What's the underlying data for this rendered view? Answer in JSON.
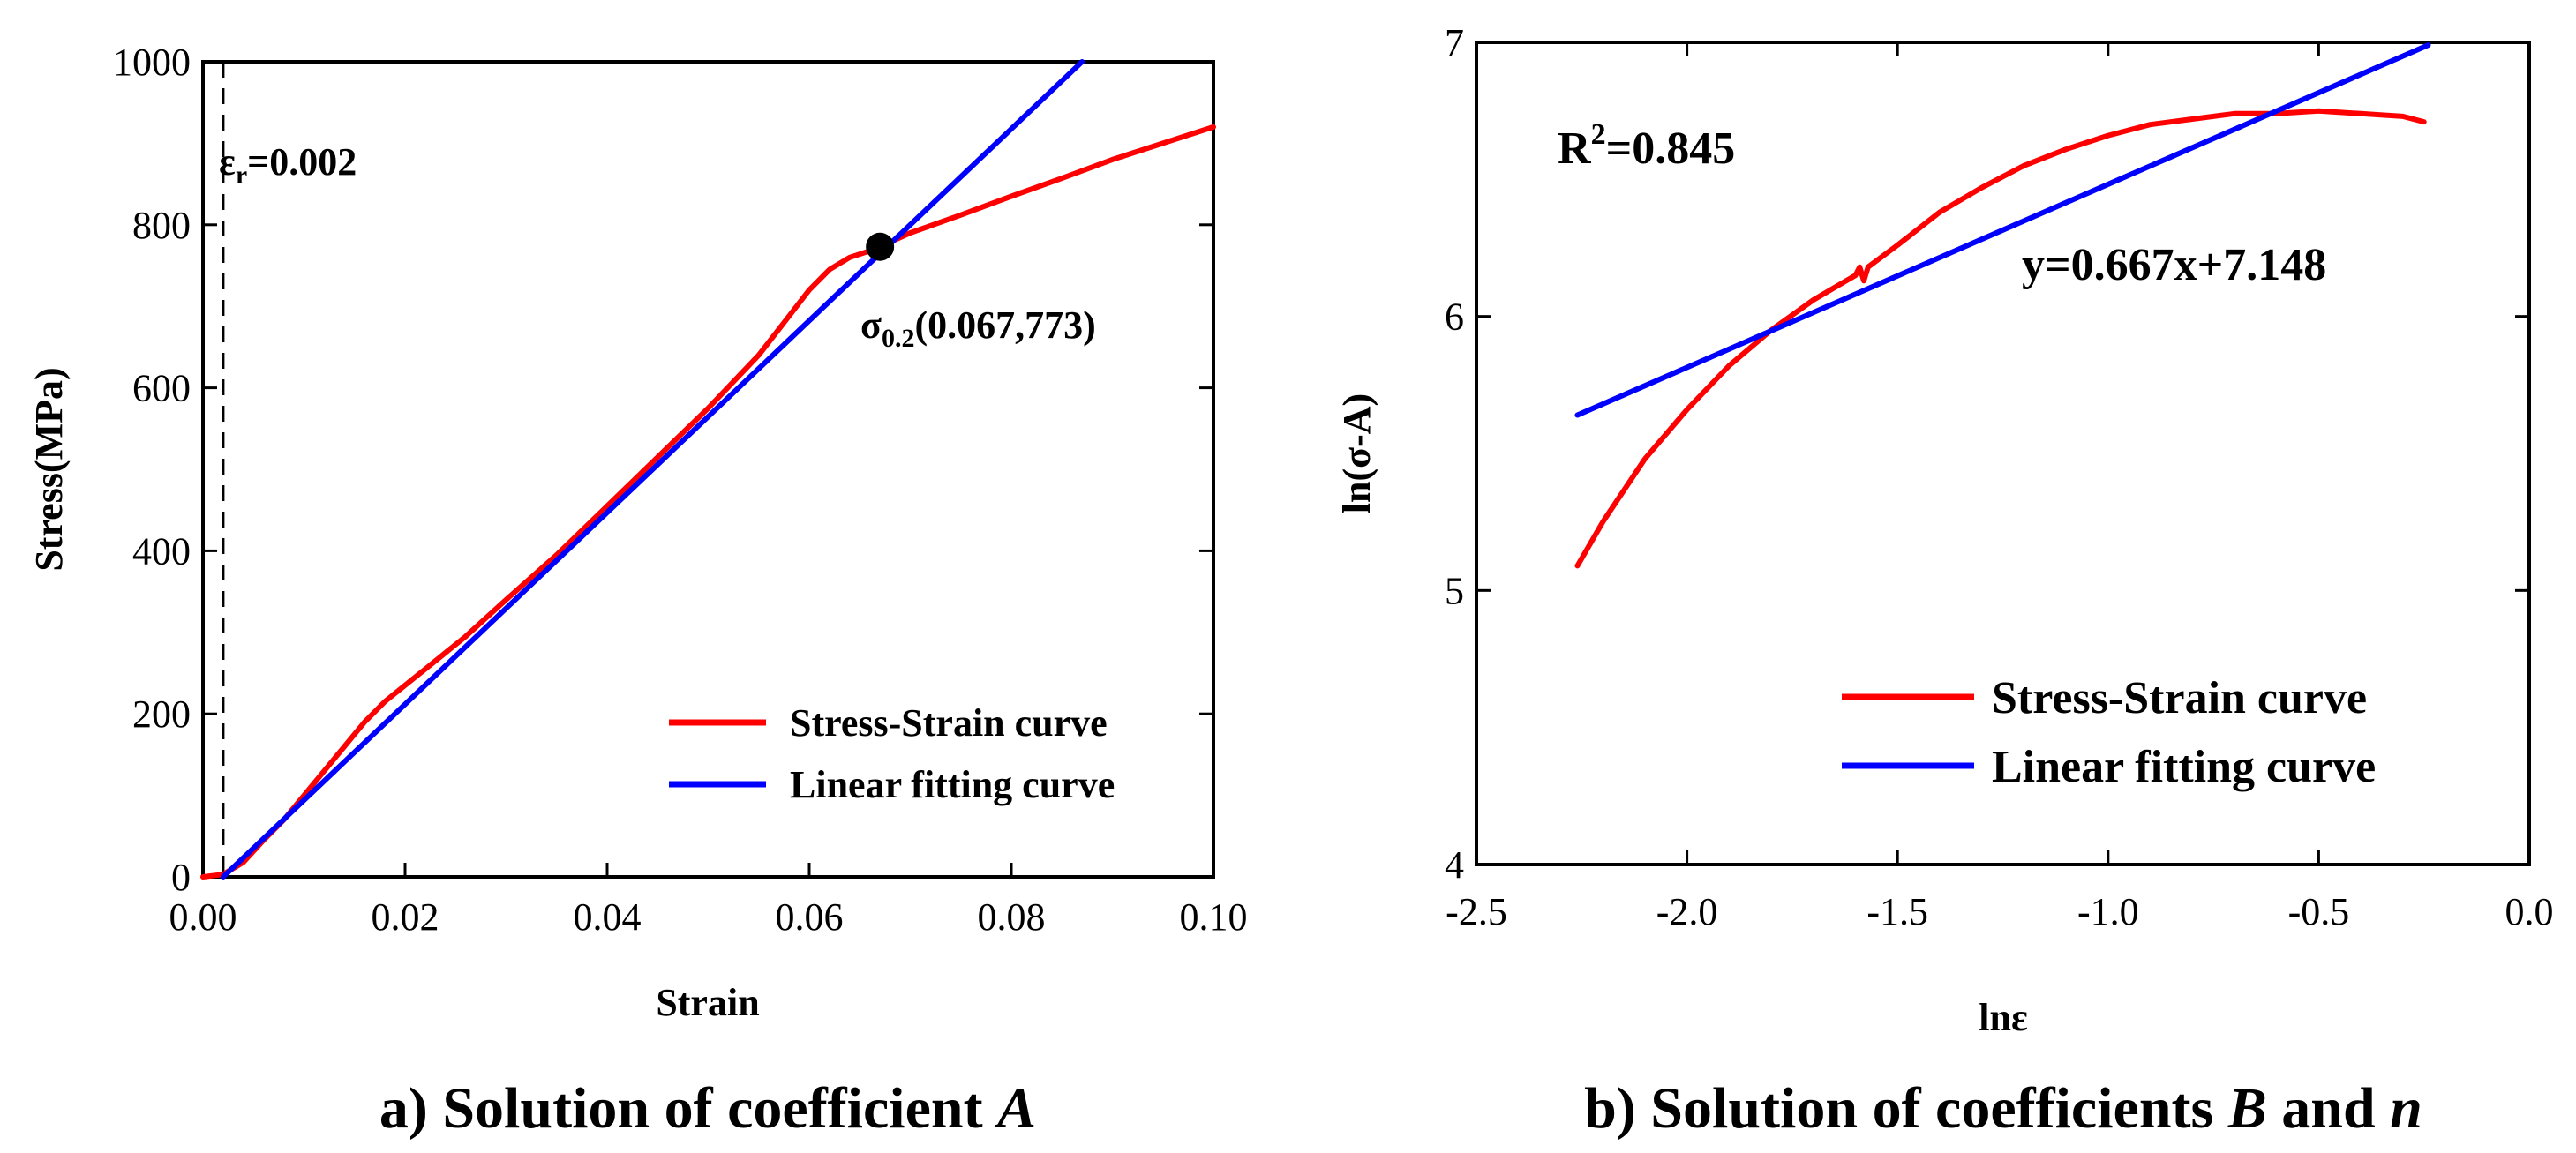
{
  "chart_data": [
    {
      "type": "line",
      "panel": "a",
      "caption_prefix": "a) Solution of coefficient ",
      "caption_italic": "A",
      "xlabel": "Strain",
      "ylabel": "Stress(MPa)",
      "xlim": [
        0.0,
        0.1
      ],
      "ylim": [
        0,
        1000
      ],
      "xticks": [
        "0.00",
        "0.02",
        "0.04",
        "0.06",
        "0.08",
        "0.10"
      ],
      "yticks": [
        "0",
        "200",
        "400",
        "600",
        "800",
        "1000"
      ],
      "legend_position": "bottom-right",
      "series": [
        {
          "name": "Stress-Strain curve",
          "color": "#ff0000",
          "x": [
            0.0,
            0.002,
            0.004,
            0.006,
            0.008,
            0.01,
            0.012,
            0.014,
            0.016,
            0.018,
            0.019,
            0.022,
            0.026,
            0.03,
            0.035,
            0.04,
            0.045,
            0.05,
            0.055,
            0.058,
            0.06,
            0.062,
            0.064,
            0.066,
            0.067,
            0.07,
            0.075,
            0.08,
            0.085,
            0.09,
            0.095,
            0.1
          ],
          "y": [
            0,
            3,
            18,
            45,
            70,
            100,
            130,
            160,
            190,
            215,
            225,
            255,
            295,
            340,
            395,
            455,
            515,
            575,
            640,
            688,
            720,
            745,
            760,
            768,
            773,
            790,
            812,
            835,
            857,
            880,
            900,
            920
          ]
        },
        {
          "name": "Linear fitting curve",
          "color": "#0000ff",
          "x": [
            0.002,
            0.087
          ],
          "y": [
            0,
            1000
          ]
        }
      ],
      "reference_line": {
        "x": 0.002,
        "label_prefix": "ε",
        "label_sub": "r",
        "label_value": "=0.002"
      },
      "point": {
        "x": 0.067,
        "y": 773,
        "label_prefix": "σ",
        "label_sub": "0.2",
        "label_value": "(0.067,773)"
      }
    },
    {
      "type": "line",
      "panel": "b",
      "caption_prefix": "b)  Solution of coefficients ",
      "caption_italic_1": "B",
      "caption_mid": " and ",
      "caption_italic_2": "n",
      "xlabel": "lnε",
      "ylabel": "ln(σ-A)",
      "xlim": [
        -2.5,
        0.0
      ],
      "ylim": [
        4,
        7
      ],
      "xticks": [
        "-2.5",
        "-2.0",
        "-1.5",
        "-1.0",
        "-0.5",
        "0.0"
      ],
      "yticks": [
        "4",
        "5",
        "6",
        "7"
      ],
      "legend_position": "bottom-right",
      "series": [
        {
          "name": "Stress-Strain curve",
          "color": "#ff0000",
          "x": [
            -2.26,
            -2.2,
            -2.1,
            -2.0,
            -1.9,
            -1.8,
            -1.7,
            -1.6,
            -1.59,
            -1.58,
            -1.57,
            -1.5,
            -1.4,
            -1.3,
            -1.2,
            -1.1,
            -1.0,
            -0.9,
            -0.8,
            -0.7,
            -0.6,
            -0.5,
            -0.4,
            -0.3,
            -0.25
          ],
          "y": [
            5.09,
            5.25,
            5.48,
            5.66,
            5.82,
            5.95,
            6.06,
            6.15,
            6.18,
            6.13,
            6.18,
            6.26,
            6.38,
            6.47,
            6.55,
            6.61,
            6.66,
            6.7,
            6.72,
            6.74,
            6.74,
            6.75,
            6.74,
            6.73,
            6.71
          ]
        },
        {
          "name": "Linear fitting curve",
          "color": "#0000ff",
          "x": [
            -2.26,
            -0.24
          ],
          "y": [
            5.64,
            6.99
          ]
        }
      ],
      "r2_prefix": "R",
      "r2_sup": "2",
      "r2_value": "=0.845",
      "equation": "y=0.667x+7.148"
    }
  ]
}
